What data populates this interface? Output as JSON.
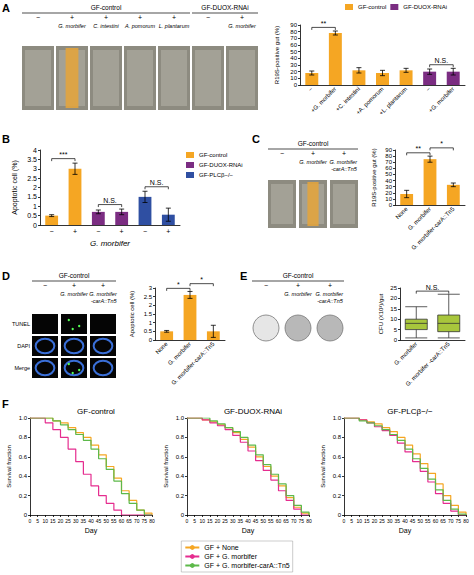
{
  "panel_labels": [
    "A",
    "B",
    "C",
    "D",
    "E",
    "F"
  ],
  "images": {
    "A": {
      "groups": [
        {
          "label": "GF-control",
          "columns": [
            {
              "sign": "−"
            },
            {
              "sign": "+",
              "name": "G. morbifer",
              "stained": true
            },
            {
              "sign": "+",
              "name": "C. intestini"
            },
            {
              "sign": "+",
              "name": "A. pomorum"
            },
            {
              "sign": "+",
              "name": "L. plantarum"
            }
          ]
        },
        {
          "label": "GF-DUOX-RNAi",
          "columns": [
            {
              "sign": "−"
            },
            {
              "sign": "+",
              "name": "G. morbifer"
            }
          ]
        }
      ]
    },
    "C": {
      "groups": [
        {
          "label": "GF-control",
          "columns": [
            {
              "sign": "−"
            },
            {
              "sign": "+",
              "name": "G. morbifer",
              "stained": true
            },
            {
              "sign": "+",
              "name": "G. morbifer -carA::Tn5"
            }
          ]
        }
      ]
    },
    "D": {
      "groups": [
        {
          "label": "GF-control",
          "columns": [
            {
              "sign": "−"
            },
            {
              "sign": "+",
              "name": "G. morbifer",
              "stained": true
            },
            {
              "sign": "+",
              "name": "G. morbifer -carA::Tn5"
            }
          ]
        }
      ],
      "rows": [
        "TUNEL",
        "DAPI",
        "Merge"
      ]
    },
    "E": {
      "groups": [
        {
          "label": "GF-control",
          "columns": [
            {
              "sign": "−"
            },
            {
              "sign": "+",
              "name": "G. morbifer"
            },
            {
              "sign": "+",
              "name": "G. morbifer -carA::Tn5"
            }
          ]
        }
      ]
    }
  },
  "chart_data": [
    {
      "type": "bar",
      "categories": [
        "−",
        "+G. morbifer",
        "+C. intestini",
        "+A. pomorum",
        "+L. plantarum",
        "−",
        "+G. morbifer"
      ],
      "series": [
        {
          "name": "GF-control",
          "color": "#F5A623",
          "values": [
            18,
            78,
            22,
            18,
            22,
            null,
            null
          ],
          "errors": [
            3,
            3,
            4,
            4,
            3,
            null,
            null
          ]
        },
        {
          "name": "GF-DUOX-RNAi",
          "color": "#7B2D82",
          "values": [
            null,
            null,
            null,
            null,
            null,
            20,
            20
          ],
          "errors": [
            null,
            null,
            null,
            null,
            null,
            4,
            5
          ]
        }
      ],
      "ylabel": "R19S-positive gut (%)",
      "ylim": [
        0,
        90
      ],
      "yticks": [
        0,
        10,
        20,
        30,
        40,
        50,
        60,
        70,
        80,
        90
      ],
      "annotations": [
        {
          "text": "**",
          "between": [
            0,
            1
          ]
        },
        {
          "text": "N.S.",
          "between": [
            5,
            6
          ]
        }
      ],
      "legend": "top"
    },
    {
      "type": "bar",
      "categories": [
        "−",
        "+",
        "−",
        "+",
        "−",
        "+"
      ],
      "series": [
        {
          "name": "GF-control",
          "color": "#F5A623",
          "values": [
            0.5,
            3.0,
            null,
            null,
            null,
            null
          ],
          "errors": [
            0.05,
            0.3,
            null,
            null,
            null,
            null
          ]
        },
        {
          "name": "GF-DUOX-RNAi",
          "color": "#7B2D82",
          "values": [
            null,
            null,
            0.7,
            0.7,
            null,
            null
          ],
          "errors": [
            null,
            null,
            0.1,
            0.15,
            null,
            null
          ]
        },
        {
          "name": "GF-PLCβ−/−",
          "color": "#2F4FA2",
          "values": [
            null,
            null,
            null,
            null,
            1.5,
            0.55
          ],
          "errors": [
            null,
            null,
            null,
            null,
            0.3,
            0.35
          ]
        }
      ],
      "xlabel": "G. morbifer",
      "ylabel": "Apoptotic cell (%)",
      "ylim": [
        0,
        4
      ],
      "yticks": [
        0,
        0.5,
        1,
        1.5,
        2,
        2.5,
        3,
        3.5,
        4
      ],
      "annotations": [
        {
          "text": "***",
          "between": [
            0,
            1
          ]
        },
        {
          "text": "N.S.",
          "between": [
            2,
            3
          ]
        },
        {
          "text": "N.S.",
          "between": [
            4,
            5
          ]
        }
      ],
      "legend": "right"
    },
    {
      "type": "bar",
      "categories": [
        "None",
        "G. morbifer",
        "G. morbifer-carA::Tn5"
      ],
      "values": [
        18,
        75,
        33
      ],
      "errors": [
        6,
        5,
        3
      ],
      "color": "#F5A623",
      "ylabel": "R19S-positive gut (%)",
      "ylim": [
        0,
        90
      ],
      "yticks": [
        0,
        10,
        20,
        30,
        40,
        50,
        60,
        70,
        80,
        90
      ],
      "annotations": [
        {
          "text": "**",
          "between": [
            0,
            1
          ]
        },
        {
          "text": "*",
          "between": [
            1,
            2
          ]
        }
      ]
    },
    {
      "type": "bar",
      "categories": [
        "None",
        "G. morbifer",
        "G. morbifer-carA::Tn5"
      ],
      "values": [
        0.5,
        2.6,
        0.5
      ],
      "errors": [
        0.05,
        0.2,
        0.35
      ],
      "color": "#F5A623",
      "ylabel": "Apoptotic cell (%)",
      "ylim": [
        0,
        3
      ],
      "yticks": [
        0,
        0.5,
        1,
        1.5,
        2,
        2.5,
        3
      ],
      "annotations": [
        {
          "text": "*",
          "between": [
            0,
            1
          ]
        },
        {
          "text": "*",
          "between": [
            1,
            2
          ]
        }
      ]
    },
    {
      "type": "box",
      "categories": [
        "G. morbifer",
        "G. morbifer -carA::Tn5"
      ],
      "boxes": [
        [
          1,
          5,
          8,
          10,
          16
        ],
        [
          1,
          4,
          8,
          12,
          22
        ]
      ],
      "color": "#A8C63C",
      "ylabel": "CFU (X10³)/gut",
      "ylim": [
        0,
        25
      ],
      "yticks": [
        0,
        5,
        10,
        15,
        20,
        25
      ],
      "annotations": [
        {
          "text": "N.S.",
          "between": [
            0,
            1
          ]
        }
      ]
    },
    {
      "type": "line",
      "title": "GF-control",
      "line_style": "step",
      "x": [
        0,
        5,
        10,
        15,
        20,
        25,
        30,
        35,
        40,
        45,
        50,
        55,
        60,
        65,
        70,
        75,
        80
      ],
      "series": [
        {
          "name": "GF + None",
          "color": "#F5A623",
          "values": [
            1,
            1,
            1,
            0.97,
            0.95,
            0.9,
            0.85,
            0.8,
            0.72,
            0.62,
            0.5,
            0.38,
            0.25,
            0.15,
            0.05,
            0.02,
            0
          ]
        },
        {
          "name": "GF + G. morbifer",
          "color": "#E52D8F",
          "values": [
            1,
            1,
            0.95,
            0.88,
            0.8,
            0.68,
            0.55,
            0.42,
            0.3,
            0.2,
            0.12,
            0.05,
            0,
            0,
            0,
            0,
            0
          ]
        },
        {
          "name": "GF + G. morbifer-carA::Tn5",
          "color": "#5DB94A",
          "values": [
            1,
            1,
            1,
            0.97,
            0.93,
            0.88,
            0.83,
            0.77,
            0.68,
            0.58,
            0.47,
            0.35,
            0.22,
            0.12,
            0.05,
            0,
            0
          ]
        }
      ],
      "xlabel": "Day",
      "ylabel": "Survival fraction",
      "xlim": [
        0,
        80
      ],
      "xticks": [
        0,
        5,
        10,
        15,
        20,
        25,
        30,
        35,
        40,
        45,
        50,
        55,
        60,
        65,
        70,
        75,
        80
      ],
      "ylim": [
        0,
        1
      ],
      "yticks": [
        0,
        0.2,
        0.4,
        0.6,
        0.8,
        {
          "value": 1,
          "label": "1.0"
        }
      ],
      "legend": "bottom"
    },
    {
      "type": "line",
      "title": "GF-DUOX-RNAi",
      "line_style": "step",
      "x": [
        0,
        5,
        10,
        15,
        20,
        25,
        30,
        35,
        40,
        45,
        50,
        55,
        60,
        65,
        70,
        75,
        80
      ],
      "series": [
        {
          "name": "GF + None",
          "color": "#F5A623",
          "values": [
            1,
            1,
            0.98,
            0.96,
            0.93,
            0.9,
            0.85,
            0.78,
            0.7,
            0.6,
            0.5,
            0.4,
            0.3,
            0.18,
            0.08,
            0.02,
            0
          ]
        },
        {
          "name": "GF + G. morbifer",
          "color": "#E52D8F",
          "values": [
            1,
            1,
            0.98,
            0.95,
            0.92,
            0.88,
            0.82,
            0.75,
            0.66,
            0.56,
            0.46,
            0.36,
            0.25,
            0.15,
            0.06,
            0,
            0
          ]
        },
        {
          "name": "GF + G. morbifer-carA::Tn5",
          "color": "#5DB94A",
          "values": [
            1,
            1,
            1,
            0.97,
            0.94,
            0.9,
            0.86,
            0.8,
            0.72,
            0.62,
            0.52,
            0.42,
            0.32,
            0.2,
            0.1,
            0.03,
            0
          ]
        }
      ],
      "xlabel": "Day",
      "ylabel": "Survival fraction",
      "xlim": [
        0,
        80
      ],
      "xticks": [
        0,
        5,
        10,
        15,
        20,
        25,
        30,
        35,
        40,
        45,
        50,
        55,
        60,
        65,
        70,
        75,
        80
      ],
      "ylim": [
        0,
        1
      ],
      "yticks": [
        0,
        0.2,
        0.4,
        0.6,
        0.8,
        {
          "value": 1,
          "label": "1.0"
        }
      ],
      "legend": "bottom"
    },
    {
      "type": "line",
      "title": "GF-PLCβ−/−",
      "line_style": "step",
      "x": [
        0,
        5,
        10,
        15,
        20,
        25,
        30,
        35,
        40,
        45,
        50,
        55,
        60,
        65,
        70,
        75,
        80
      ],
      "series": [
        {
          "name": "GF + None",
          "color": "#F5A623",
          "values": [
            1,
            1,
            0.98,
            0.96,
            0.94,
            0.9,
            0.86,
            0.8,
            0.72,
            0.63,
            0.53,
            0.43,
            0.32,
            0.2,
            0.1,
            0.03,
            0
          ]
        },
        {
          "name": "GF + G. morbifer",
          "color": "#E52D8F",
          "values": [
            1,
            1,
            0.98,
            0.95,
            0.91,
            0.87,
            0.82,
            0.74,
            0.65,
            0.55,
            0.45,
            0.34,
            0.22,
            0.12,
            0.04,
            0,
            0
          ]
        },
        {
          "name": "GF + G. morbifer-carA::Tn5",
          "color": "#5DB94A",
          "values": [
            1,
            1,
            0.97,
            0.95,
            0.92,
            0.88,
            0.83,
            0.77,
            0.68,
            0.58,
            0.48,
            0.37,
            0.26,
            0.15,
            0.06,
            0.01,
            0
          ]
        }
      ],
      "xlabel": "Day",
      "ylabel": "Survival fraction",
      "xlim": [
        0,
        80
      ],
      "xticks": [
        0,
        5,
        10,
        15,
        20,
        25,
        30,
        35,
        40,
        45,
        50,
        55,
        60,
        65,
        70,
        75,
        80
      ],
      "ylim": [
        0,
        1
      ],
      "yticks": [
        0,
        0.2,
        0.4,
        0.6,
        0.8,
        {
          "value": 1,
          "label": "1.0"
        }
      ],
      "legend": "bottom"
    }
  ]
}
